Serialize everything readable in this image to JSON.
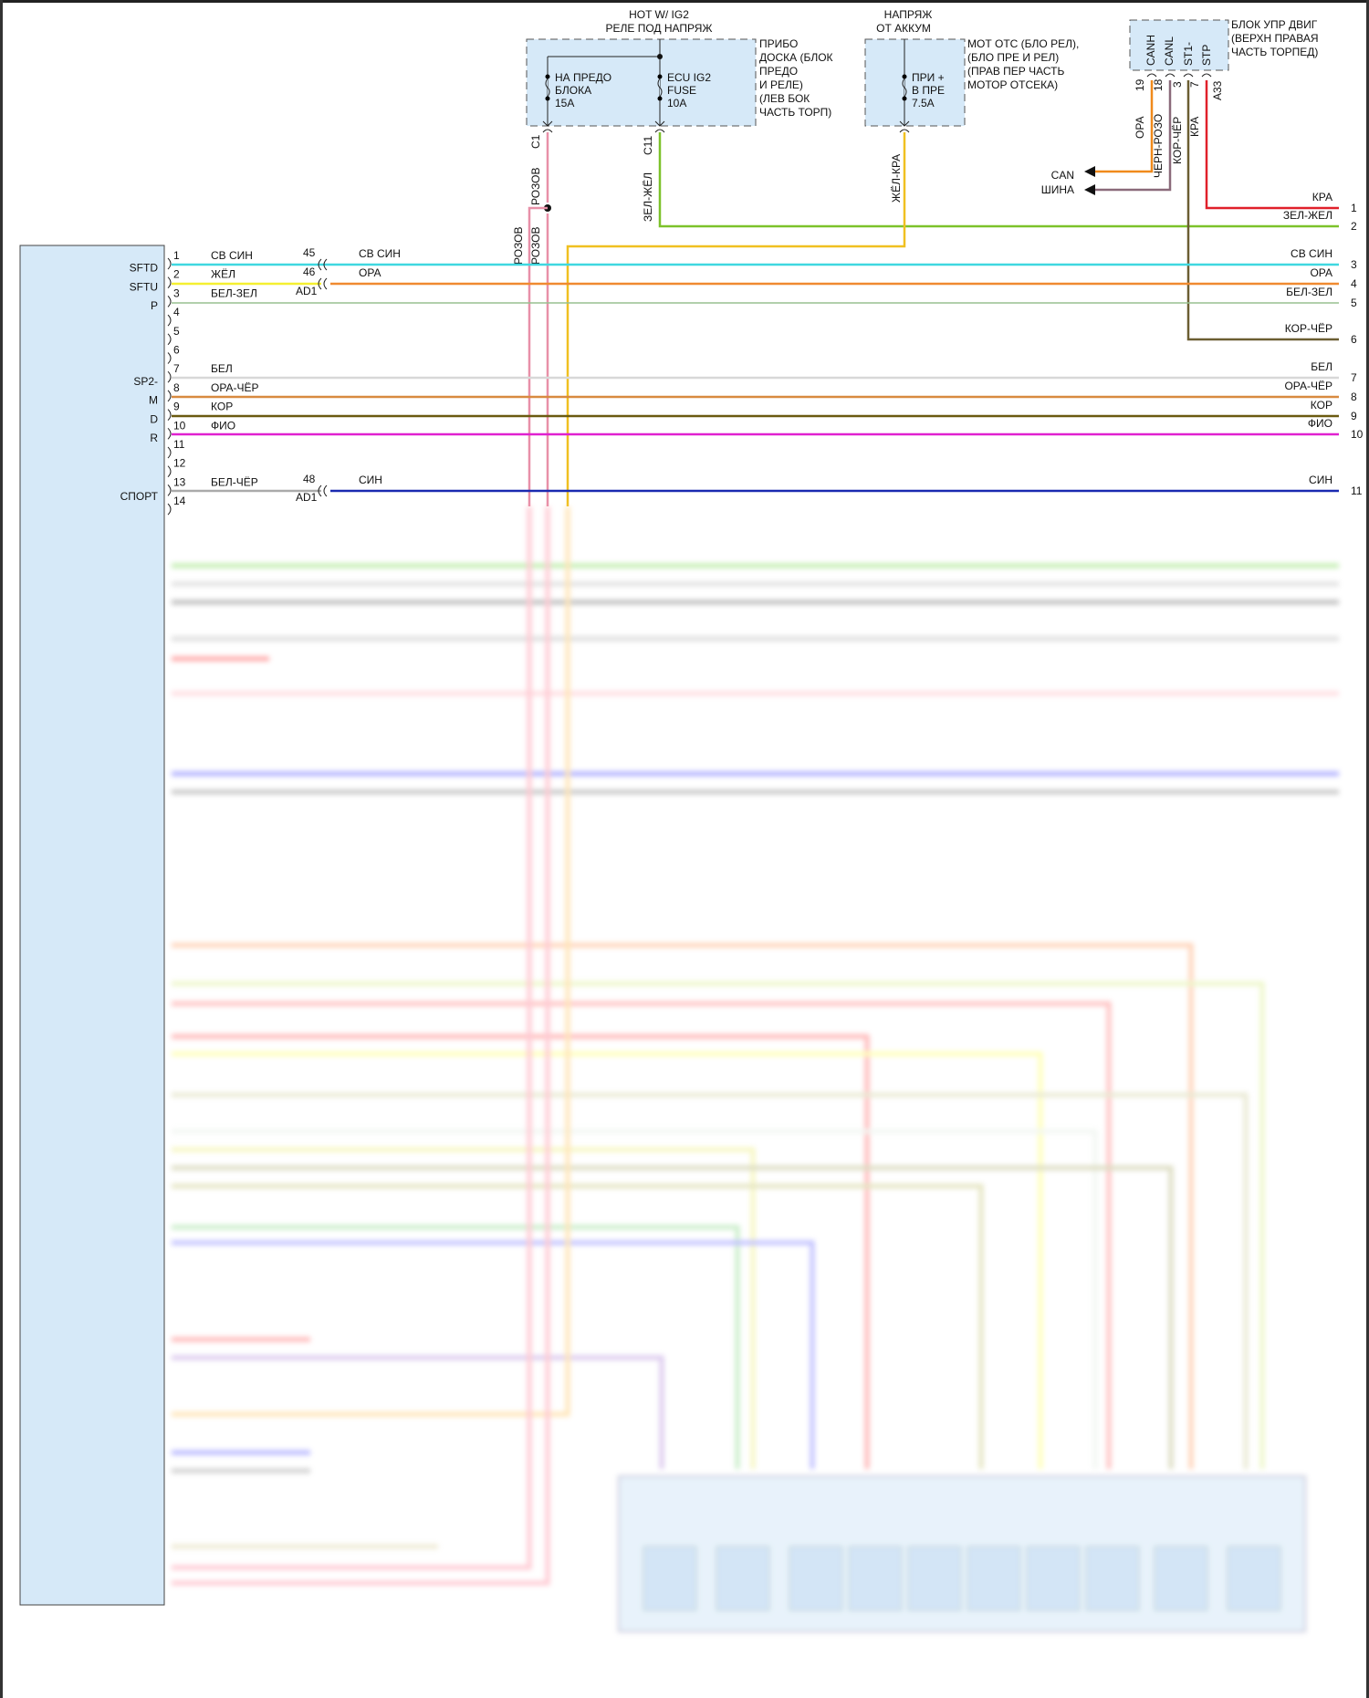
{
  "supplies": {
    "ig2_title_1": "HOT W/ IG2",
    "ig2_title_2": "РЕЛЕ ПОД НАПРЯЖ",
    "fuse1": [
      "НА ПРЕДО",
      "БЛОКА",
      "15А"
    ],
    "fuse2": [
      "ECU IG2",
      "FUSE",
      "10A"
    ],
    "box1_location": [
      "ПРИБО",
      "ДОСКА (БЛОК",
      "ПРЕДО",
      "И РЕЛЕ)",
      "(ЛЕВ БОК",
      "ЧАСТЬ ТОРП)"
    ],
    "batt_title_1": "НАПРЯЖ",
    "batt_title_2": "ОТ АККУМ",
    "fuse3": [
      "ПРИ +",
      "В ПРЕ",
      "7.5A"
    ],
    "box2_location": [
      "МОТ ОТС (БЛО РЕЛ),",
      "(БЛО ПРЕ И РЕЛ)",
      "(ПРАВ ПЕР ЧАСТЬ",
      "МОТОР ОТСЕКА)"
    ],
    "conn_c1": "C1",
    "conn_c11": "C11",
    "wire_c1": "РОЗОВ",
    "wire_c11": "ЗЕЛ-ЖЁЛ",
    "wire_fuse3": "ЖЁЛ-КРА",
    "wire_pink_a": "РОЗОВ",
    "wire_pink_b": "РОЗОВ"
  },
  "ecm": {
    "location": [
      "БЛОК УПР ДВИГ",
      "(ВЕРХН ПРАВАЯ",
      "ЧАСТЬ ТОРПЕД)"
    ],
    "pins": [
      {
        "name": "CANH",
        "num": "19",
        "wire": "ОРА",
        "color": "#f08a1c"
      },
      {
        "name": "CANL",
        "num": "18",
        "wire": "ЧЕРН-РОЗО",
        "color": "#8a6a7a"
      },
      {
        "name": "ST1-",
        "num": "3",
        "wire": "КОР-ЧЁР",
        "color": "#6b5e32"
      },
      {
        "name": "STP",
        "num": "7",
        "wire": "КРА",
        "color": "#e0202a"
      }
    ],
    "stp_connector": "A33",
    "can_label_1": "CAN",
    "can_label_2": "ШИНА"
  },
  "left_unit": {
    "pins": [
      {
        "num": "1",
        "label": "",
        "wire": "СВ СИН"
      },
      {
        "num": "2",
        "label": "SFTD",
        "wire": "ЖЁЛ"
      },
      {
        "num": "3",
        "label": "SFTU",
        "wire": "БЕЛ-ЗЕЛ"
      },
      {
        "num": "4",
        "label": "P",
        "wire": ""
      },
      {
        "num": "5",
        "label": "",
        "wire": ""
      },
      {
        "num": "6",
        "label": "",
        "wire": ""
      },
      {
        "num": "7",
        "label": "",
        "wire": "БЕЛ"
      },
      {
        "num": "8",
        "label": "SP2-",
        "wire": "ОРА-ЧЁР"
      },
      {
        "num": "9",
        "label": "M",
        "wire": "КОР"
      },
      {
        "num": "10",
        "label": "D",
        "wire": "ФИО"
      },
      {
        "num": "11",
        "label": "R",
        "wire": ""
      },
      {
        "num": "12",
        "label": "",
        "wire": ""
      },
      {
        "num": "13",
        "label": "",
        "wire": "БЕЛ-ЧЁР"
      },
      {
        "num": "14",
        "label": "СПОРТ",
        "wire": ""
      }
    ],
    "junction": {
      "n45": "45",
      "n46": "46",
      "ad1_a": "AD1",
      "n48": "48",
      "ad1_b": "AD1",
      "w45": "СВ СИН",
      "w46": "ОРА",
      "w48": "СИН"
    }
  },
  "right_terminals": [
    {
      "num": "1",
      "wire": "КРА",
      "color": "#e0202a"
    },
    {
      "num": "2",
      "wire": "ЗЕЛ-ЖЕЛ",
      "color": "#7cc22a"
    },
    {
      "num": "3",
      "wire": "СВ СИН",
      "color": "#3fd8e0"
    },
    {
      "num": "4",
      "wire": "ОРА",
      "color": "#f08a30"
    },
    {
      "num": "5",
      "wire": "БЕЛ-ЗЕЛ",
      "color": "#98c090"
    },
    {
      "num": "6",
      "wire": "КОР-ЧЁР",
      "color": "#6b5e32"
    },
    {
      "num": "7",
      "wire": "БЕЛ",
      "color": "#d8d8d8"
    },
    {
      "num": "8",
      "wire": "ОРА-ЧЁР",
      "color": "#d88a40"
    },
    {
      "num": "9",
      "wire": "КОР",
      "color": "#6a5a10"
    },
    {
      "num": "10",
      "wire": "ФИО",
      "color": "#e020d0"
    },
    {
      "num": "11",
      "wire": "СИН",
      "color": "#1a2ab0"
    }
  ]
}
